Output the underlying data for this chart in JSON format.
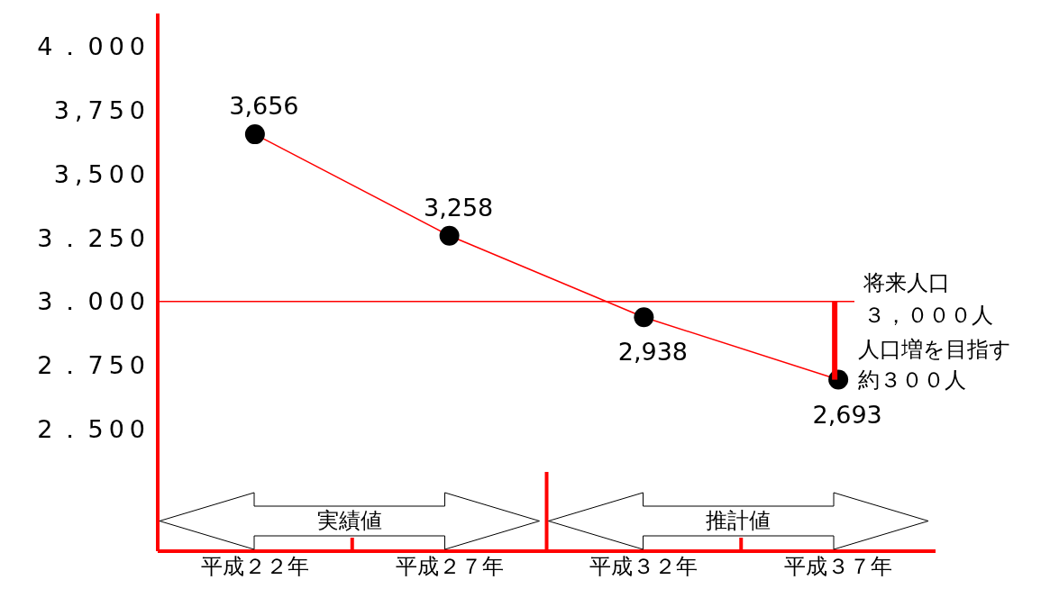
{
  "chart_data": {
    "type": "line",
    "categories": [
      "平成２２年",
      "平成２７年",
      "平成３２年",
      "平成３７年"
    ],
    "series": [
      {
        "color": "#ff0000",
        "values": [
          3656,
          3258,
          2938,
          2693
        ],
        "value_labels": [
          "3,656",
          "3,258",
          "2,938",
          "2,693"
        ]
      }
    ],
    "marker": "circle",
    "ylim": [
      2020,
      4130
    ],
    "yticks": [
      {
        "value": 2500,
        "label": "2．500"
      },
      {
        "value": 2750,
        "label": "2．750"
      },
      {
        "value": 3000,
        "label": "3．000"
      },
      {
        "value": 3250,
        "label": "3．250"
      },
      {
        "value": 3500,
        "label": "3,500"
      },
      {
        "value": 3750,
        "label": "3,750"
      },
      {
        "value": 4000,
        "label": "4．000"
      }
    ],
    "ref_lines": [
      {
        "axis": "y",
        "value": 3000,
        "label": "将来人口３，０００人",
        "color": "#ff0000"
      }
    ],
    "annotations": [
      "実績値",
      "推計値",
      {
        "text": "人口増を目指す約３００人",
        "x": "平成３７年",
        "y": 2693
      }
    ]
  }
}
